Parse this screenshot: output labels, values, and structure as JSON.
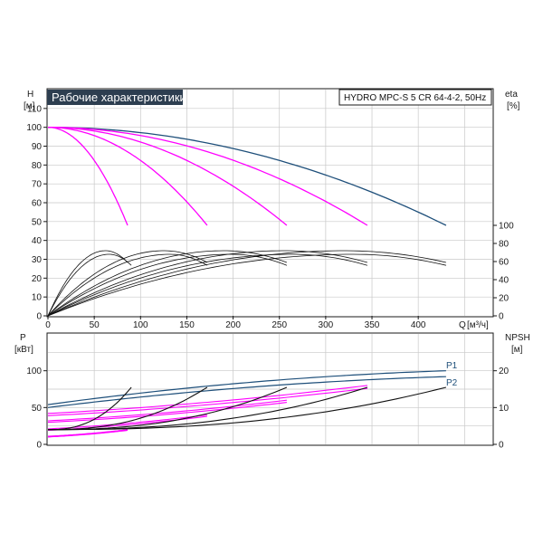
{
  "header": {
    "title": "Рабочие характеристики",
    "model": "HYDRO MPC-S 5 CR 64-4-2, 50Hz"
  },
  "colors": {
    "title_bg": "#2d3e50",
    "max_curve": "#1e4f7a",
    "speed_curves": "#ff00ff",
    "eff_curves": "#111111",
    "grid": "#c8c8c8"
  },
  "labels": {
    "top_left_unit_name": "H",
    "top_left_unit": "[м]",
    "top_right_unit_name": "eta",
    "top_right_unit": "[%]",
    "x_name": "Q",
    "x_unit": "[м³/ч]",
    "bottom_left_unit_name": "P",
    "bottom_left_unit": "[кВт]",
    "bottom_right_unit_name": "NPSH",
    "bottom_right_unit": "[м]",
    "p1": "P1",
    "p2": "P2"
  },
  "chart_data": [
    {
      "type": "line",
      "panel": "head-efficiency",
      "xlabel": "Q [м³/ч]",
      "ylabel": "H [м]",
      "y2label": "eta [%]",
      "xlim": [
        0,
        480
      ],
      "ylim": [
        0,
        120
      ],
      "y2lim": [
        0,
        100
      ],
      "xticks": [
        "0",
        "50",
        "100",
        "150",
        "200",
        "250",
        "300",
        "350",
        "400"
      ],
      "yticks": [
        "0",
        "10",
        "20",
        "30",
        "40",
        "50",
        "60",
        "70",
        "80",
        "90",
        "100",
        "110"
      ],
      "y2ticks": [
        "0",
        "20",
        "40",
        "60",
        "80",
        "100"
      ],
      "grid": true,
      "head_curves": [
        {
          "q_max": 430,
          "h_max": 48,
          "style": "max"
        },
        {
          "q_max": 345,
          "h_max": 48,
          "style": "speed"
        },
        {
          "q_max": 258,
          "h_max": 48,
          "style": "speed"
        },
        {
          "q_max": 172,
          "h_max": 48,
          "style": "speed"
        },
        {
          "q_max": 86,
          "h_max": 48,
          "style": "speed"
        }
      ],
      "shutoff_head": 100,
      "efficiency_curves": [
        {
          "q_max": 86,
          "peak_q": 62,
          "peak_eta": 72
        },
        {
          "q_max": 90,
          "peak_q": 66,
          "peak_eta": 68
        },
        {
          "q_max": 172,
          "peak_q": 125,
          "peak_eta": 72
        },
        {
          "q_max": 172,
          "peak_q": 132,
          "peak_eta": 68
        },
        {
          "q_max": 258,
          "peak_q": 190,
          "peak_eta": 72
        },
        {
          "q_max": 258,
          "peak_q": 198,
          "peak_eta": 68
        },
        {
          "q_max": 345,
          "peak_q": 255,
          "peak_eta": 72
        },
        {
          "q_max": 345,
          "peak_q": 264,
          "peak_eta": 68
        },
        {
          "q_max": 430,
          "peak_q": 320,
          "peak_eta": 72
        },
        {
          "q_max": 430,
          "peak_q": 330,
          "peak_eta": 68
        }
      ]
    },
    {
      "type": "line",
      "panel": "power-npsh",
      "xlim": [
        0,
        480
      ],
      "ylabel": "P [кВт]",
      "y2label": "NPSH [м]",
      "ylim": [
        0,
        150
      ],
      "y2lim": [
        0,
        30
      ],
      "yticks": [
        "0",
        "50",
        "100"
      ],
      "y2ticks": [
        "0",
        "10",
        "20"
      ],
      "grid": true,
      "series": [
        {
          "name": "P1",
          "q_max": 430,
          "p_start": 54,
          "p_end": 100,
          "style": "max"
        },
        {
          "name": "P2",
          "q_max": 430,
          "p_start": 50,
          "p_end": 92,
          "style": "max"
        }
      ],
      "speed_power_curves": [
        {
          "q_max": 345,
          "p_start": 42,
          "p_end": 80
        },
        {
          "q_max": 345,
          "p_start": 39,
          "p_end": 76
        },
        {
          "q_max": 258,
          "p_start": 32,
          "p_end": 60
        },
        {
          "q_max": 258,
          "p_start": 30,
          "p_end": 57
        },
        {
          "q_max": 172,
          "p_start": 21,
          "p_end": 40
        },
        {
          "q_max": 172,
          "p_start": 19,
          "p_end": 38
        },
        {
          "q_max": 86,
          "p_start": 11,
          "p_end": 20
        },
        {
          "q_max": 86,
          "p_start": 10,
          "p_end": 19
        }
      ],
      "npsh_curves": [
        {
          "q_max": 430,
          "npsh_start": 4,
          "npsh_end": 15.5
        },
        {
          "q_max": 345,
          "npsh_start": 4,
          "npsh_end": 15.5
        },
        {
          "q_max": 258,
          "npsh_start": 4,
          "npsh_end": 15.5
        },
        {
          "q_max": 172,
          "npsh_start": 4,
          "npsh_end": 15.5
        },
        {
          "q_max": 90,
          "npsh_start": 4,
          "npsh_end": 15.5
        }
      ]
    }
  ]
}
